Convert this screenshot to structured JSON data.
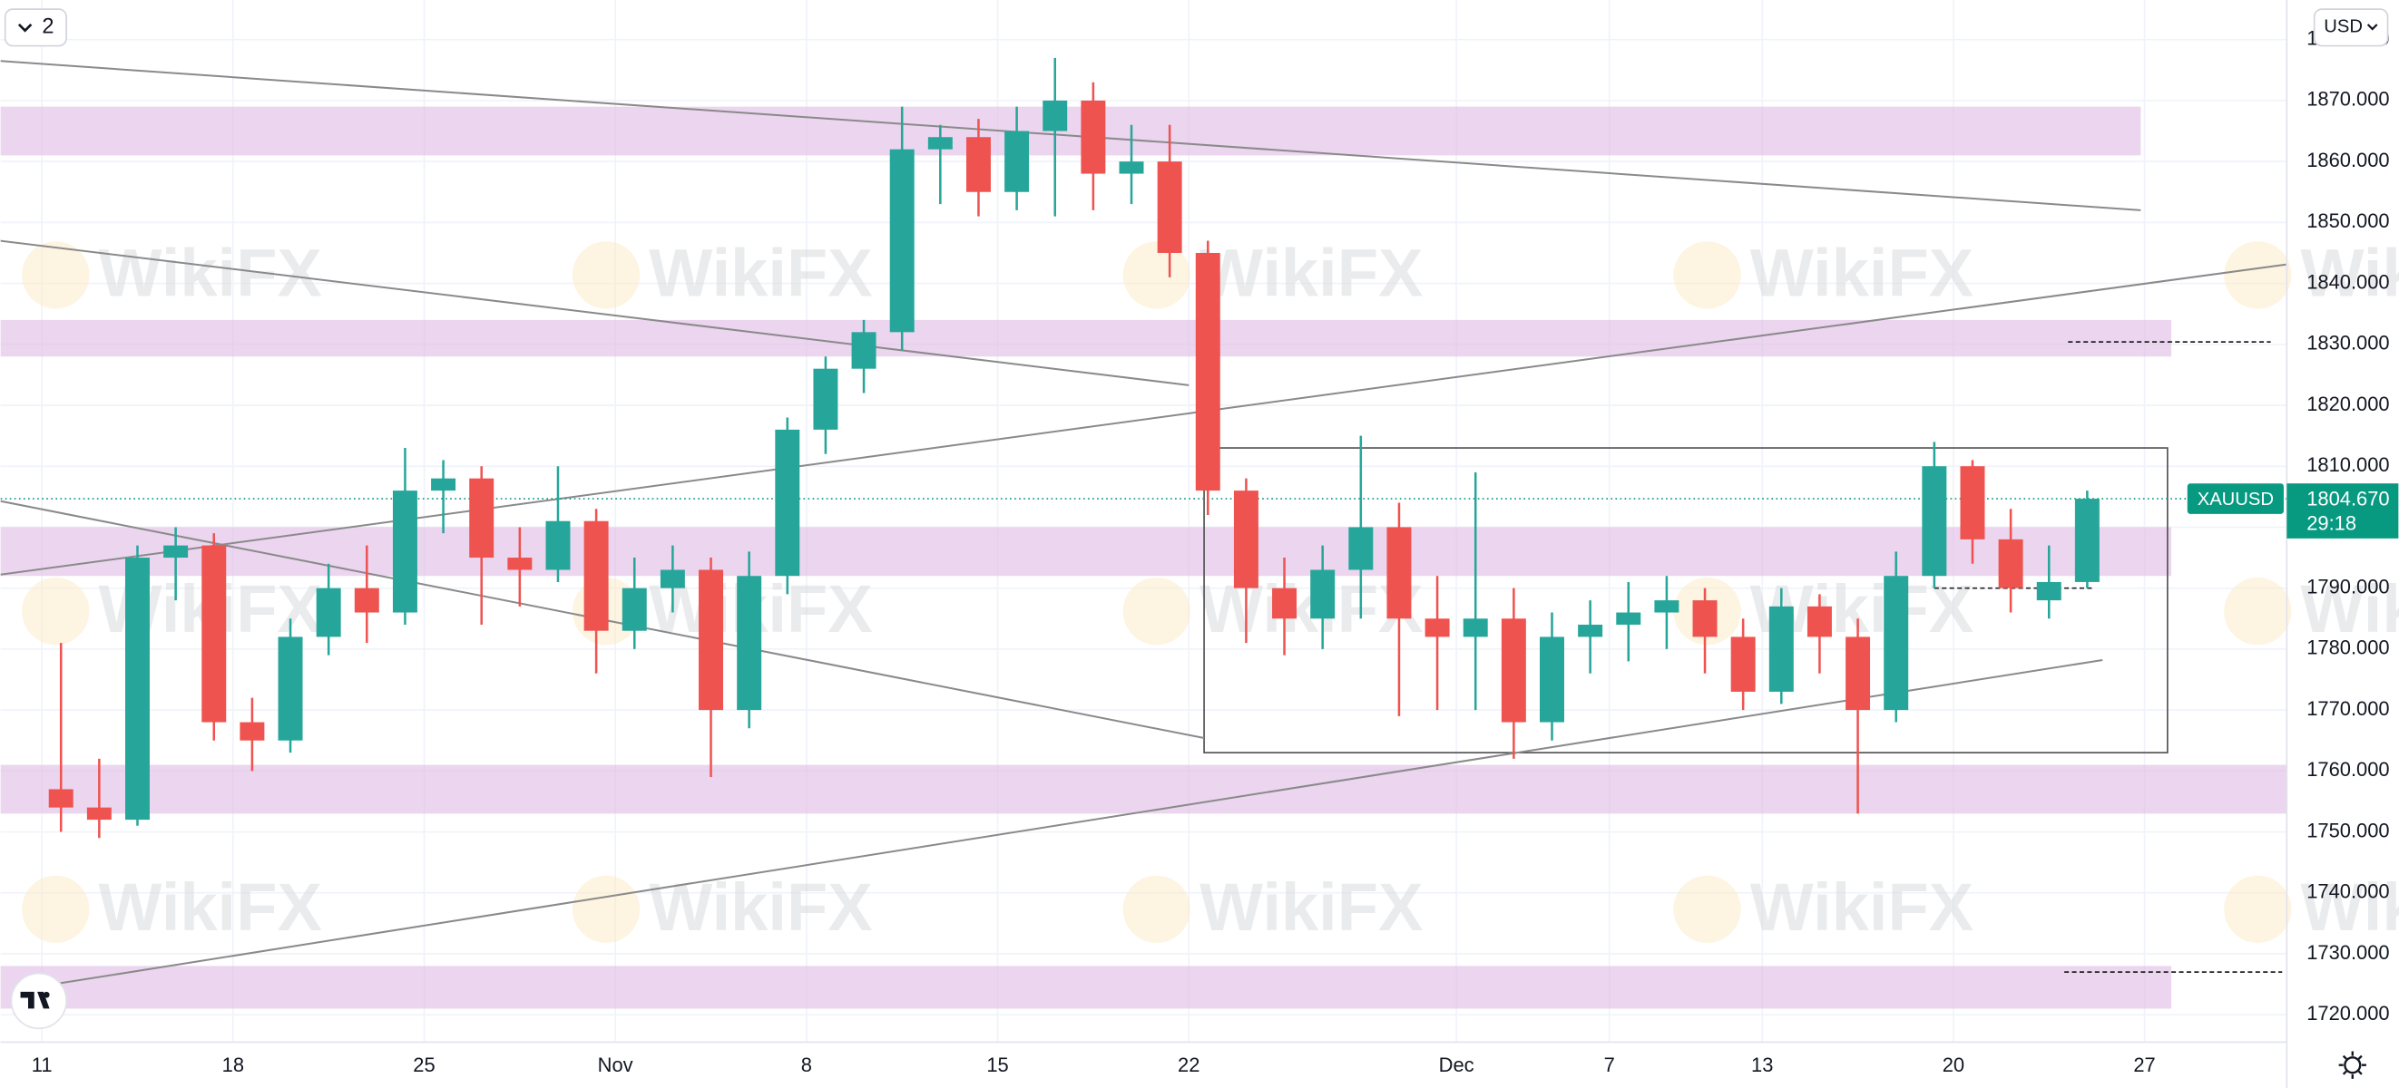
{
  "chart_data": {
    "type": "candlestick",
    "symbol": "XAUUSD",
    "currency": "USD",
    "interval_button": "2",
    "watermark": "WikiFX",
    "categories": [
      "11",
      null,
      null,
      null,
      null,
      "18",
      null,
      null,
      null,
      null,
      "25",
      null,
      null,
      null,
      null,
      "Nov",
      null,
      null,
      null,
      null,
      "8",
      null,
      null,
      null,
      null,
      "15",
      null,
      null,
      null,
      null,
      "22",
      null,
      null,
      null,
      null,
      null,
      null,
      "Dec",
      null,
      null,
      null,
      "7",
      null,
      null,
      null,
      "13",
      null,
      null,
      null,
      null,
      "20",
      null,
      null,
      null,
      null,
      "27",
      null,
      null,
      null
    ],
    "open": [
      1757,
      1754,
      1752,
      1795,
      1797,
      1768,
      1765,
      1782,
      1790,
      1786,
      1806,
      1808,
      1795,
      1793,
      1801,
      1783,
      1790,
      1793,
      1770,
      1792,
      1816,
      1826,
      1832,
      1862,
      1864,
      1855,
      1865,
      1870,
      1858,
      1860,
      1845,
      1806,
      1790,
      1785,
      1793,
      1800,
      1785,
      1782,
      1785,
      1768,
      1782,
      1784,
      1786,
      1788,
      1782,
      1773,
      1787,
      1782,
      1770,
      1792,
      1810,
      1798,
      1788,
      1791,
      null,
      null,
      null,
      null,
      null
    ],
    "high": [
      1781,
      1762,
      1797,
      1800,
      1799,
      1772,
      1785,
      1794,
      1797,
      1813,
      1811,
      1810,
      1800,
      1810,
      1803,
      1795,
      1797,
      1795,
      1796,
      1818,
      1828,
      1834,
      1869,
      1866,
      1867,
      1869,
      1877,
      1873,
      1866,
      1866,
      1847,
      1808,
      1795,
      1797,
      1815,
      1804,
      1792,
      1809,
      1790,
      1786,
      1788,
      1791,
      1792,
      1790,
      1785,
      1790,
      1789,
      1785,
      1796,
      1814,
      1811,
      1803,
      1797,
      1806,
      null,
      null,
      null,
      null,
      null
    ],
    "low": [
      1750,
      1749,
      1751,
      1788,
      1765,
      1760,
      1763,
      1779,
      1781,
      1784,
      1799,
      1784,
      1787,
      1791,
      1776,
      1780,
      1786,
      1759,
      1767,
      1789,
      1812,
      1822,
      1829,
      1853,
      1851,
      1852,
      1851,
      1852,
      1853,
      1841,
      1802,
      1781,
      1779,
      1780,
      1785,
      1769,
      1770,
      1770,
      1762,
      1765,
      1776,
      1778,
      1780,
      1776,
      1770,
      1771,
      1776,
      1753,
      1768,
      1790,
      1794,
      1786,
      1785,
      1790,
      null,
      null,
      null,
      null,
      null
    ],
    "close": [
      1754,
      1752,
      1795,
      1797,
      1768,
      1765,
      1782,
      1790,
      1786,
      1806,
      1808,
      1795,
      1793,
      1801,
      1783,
      1790,
      1793,
      1770,
      1792,
      1816,
      1826,
      1832,
      1862,
      1864,
      1855,
      1865,
      1870,
      1858,
      1860,
      1845,
      1806,
      1790,
      1785,
      1793,
      1800,
      1785,
      1782,
      1785,
      1768,
      1782,
      1784,
      1786,
      1788,
      1782,
      1773,
      1787,
      1782,
      1770,
      1792,
      1810,
      1798,
      1790,
      1791,
      1804.67,
      null,
      null,
      null,
      null,
      null
    ],
    "up_color": "#26a69a",
    "down_color": "#ef5350",
    "ylim": [
      1715.5,
      1886.5
    ],
    "yticks": [
      {
        "value": 1720,
        "label": "1720.000"
      },
      {
        "value": 1730,
        "label": "1730.000"
      },
      {
        "value": 1740,
        "label": "1740.000"
      },
      {
        "value": 1750,
        "label": "1750.000"
      },
      {
        "value": 1760,
        "label": "1760.000"
      },
      {
        "value": 1770,
        "label": "1770.000"
      },
      {
        "value": 1780,
        "label": "1780.000"
      },
      {
        "value": 1790,
        "label": "1790.000"
      },
      {
        "value": 1800,
        "label": "1800.000"
      },
      {
        "value": 1810,
        "label": "1810.000"
      },
      {
        "value": 1820,
        "label": "1820.000"
      },
      {
        "value": 1830,
        "label": "1830.000"
      },
      {
        "value": 1840,
        "label": "1840.000"
      },
      {
        "value": 1850,
        "label": "1850.000"
      },
      {
        "value": 1860,
        "label": "1860.000"
      },
      {
        "value": 1870,
        "label": "1870.000"
      },
      {
        "value": 1880,
        "label": "1880.000"
      }
    ],
    "grid": true,
    "price_line": {
      "value": 1804.67,
      "label": "1804.670",
      "countdown": "29:18",
      "color": "#089981"
    },
    "zones": [
      {
        "from": -1.1,
        "to": 54.9,
        "low": 1861,
        "high": 1869
      },
      {
        "from": -1.1,
        "to": 55.7,
        "low": 1828,
        "high": 1834
      },
      {
        "from": -1.1,
        "to": 55.7,
        "low": 1792,
        "high": 1800
      },
      {
        "from": -1.1,
        "to": 58.8,
        "low": 1753,
        "high": 1761
      },
      {
        "from": -1.1,
        "to": 55.7,
        "low": 1721,
        "high": 1728
      }
    ],
    "zone_color": "#e1bee7",
    "trendlines": [
      {
        "x1": -1.1,
        "y1": 1876.5,
        "x2": 54.9,
        "y2": 1852
      },
      {
        "x1": -1.1,
        "y1": 1847,
        "x2": 30,
        "y2": 1823.3
      },
      {
        "x1": -1.1,
        "y1": 1804.3,
        "x2": 30.4,
        "y2": 1765.4
      },
      {
        "x1": 0.1,
        "y1": 1724.8,
        "x2": 53.9,
        "y2": 1778.2
      },
      {
        "x1": -1.1,
        "y1": 1792.2,
        "x2": 58.7,
        "y2": 1843.1
      }
    ],
    "box": {
      "from": 30.4,
      "to": 55.6,
      "low": 1763,
      "high": 1813
    },
    "dashed_levels": [
      {
        "from": 53,
        "to": 58.3,
        "value": 1830.4
      },
      {
        "from": 49.5,
        "to": 53.7,
        "value": 1790
      },
      {
        "from": 52.9,
        "to": 58.6,
        "value": 1727
      }
    ]
  }
}
